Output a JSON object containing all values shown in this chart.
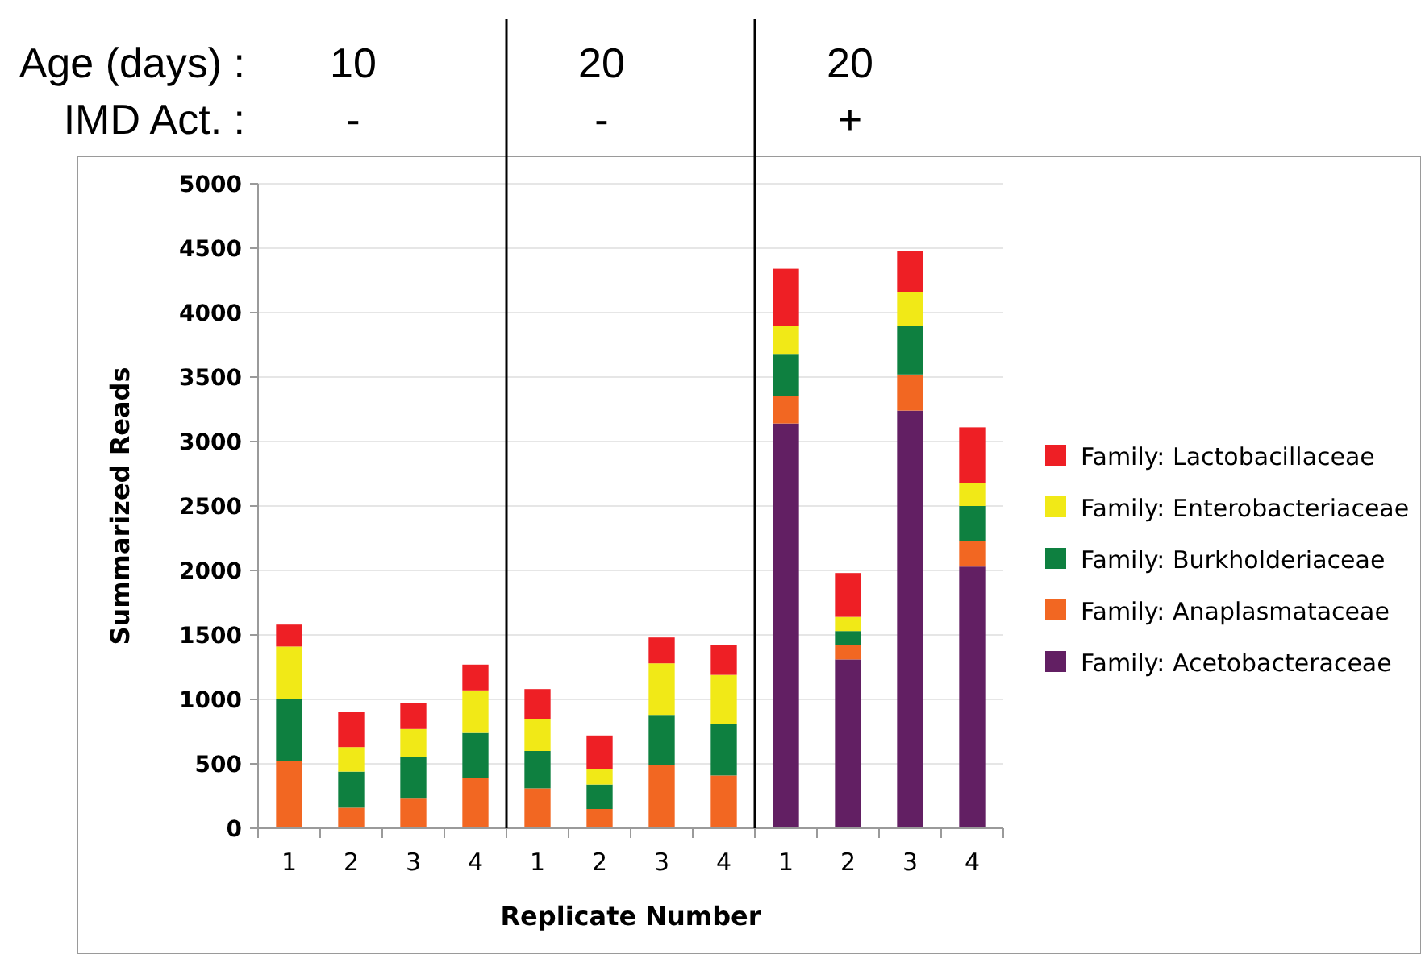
{
  "chart_data": {
    "type": "bar",
    "stacked": true,
    "xlabel": "Replicate Number",
    "ylabel": "Summarized Reads",
    "categories": [
      "1",
      "2",
      "3",
      "4",
      "1",
      "2",
      "3",
      "4",
      "1",
      "2",
      "3",
      "4"
    ],
    "series": [
      {
        "name": "Family: Acetobacteraceae",
        "color": "#621f63",
        "values": [
          0,
          0,
          0,
          0,
          0,
          0,
          0,
          0,
          3140,
          1310,
          3240,
          2030
        ]
      },
      {
        "name": "Family: Anaplasmataceae",
        "color": "#f26722",
        "values": [
          520,
          160,
          230,
          390,
          310,
          150,
          490,
          410,
          210,
          110,
          280,
          200
        ]
      },
      {
        "name": "Family: Burkholderiaceae",
        "color": "#0e8040",
        "values": [
          480,
          280,
          320,
          350,
          290,
          190,
          390,
          400,
          330,
          110,
          380,
          270
        ]
      },
      {
        "name": "Family: Enterobacteriaceae",
        "color": "#f1e917",
        "values": [
          410,
          190,
          220,
          330,
          250,
          120,
          400,
          380,
          220,
          110,
          260,
          180
        ]
      },
      {
        "name": "Family: Lactobacillaceae",
        "color": "#ee1f25",
        "values": [
          170,
          270,
          200,
          200,
          230,
          260,
          200,
          230,
          440,
          340,
          320,
          430
        ]
      }
    ],
    "ylim": [
      0,
      5000
    ],
    "yticks": [
      0,
      500,
      1000,
      1500,
      2000,
      2500,
      3000,
      3500,
      4000,
      4500,
      5000
    ],
    "grid": "y",
    "legend": "right",
    "annotations": [
      "Age (days) :",
      "10",
      "20",
      "20",
      "IMD Act. :",
      "-",
      "-",
      "+"
    ]
  }
}
